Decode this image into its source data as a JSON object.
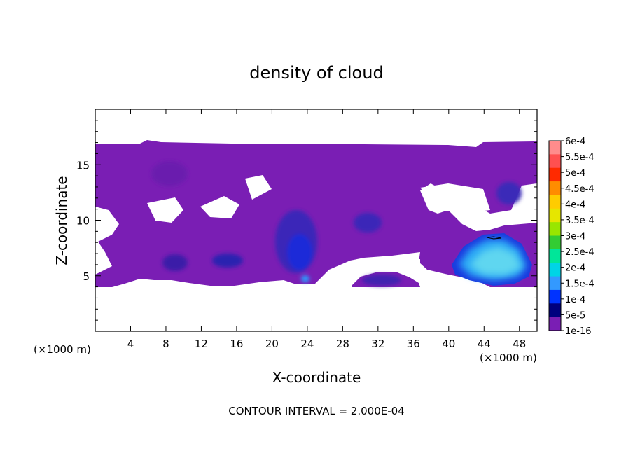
{
  "chart_data": {
    "type": "heatmap",
    "title": "density of cloud",
    "xlabel": "X-coordinate",
    "ylabel": "Z-coordinate",
    "x_unit": "(×1000 m)",
    "x_ticks": [
      4,
      8,
      12,
      16,
      20,
      24,
      28,
      32,
      36,
      40,
      44,
      48
    ],
    "y_ticks": [
      5,
      10,
      15
    ],
    "xlim": [
      0,
      50
    ],
    "ylim": [
      0,
      20
    ],
    "colorbar": {
      "labels": [
        "6e-4",
        "5.5e-4",
        "5e-4",
        "4.5e-4",
        "4e-4",
        "3.5e-4",
        "3e-4",
        "2.5e-4",
        "2e-4",
        "1.5e-4",
        "1e-4",
        "5e-5",
        "1e-16"
      ],
      "colors": [
        "#ff8c8c",
        "#ff5050",
        "#ff2a00",
        "#ff8c00",
        "#ffcc00",
        "#e6e600",
        "#99e600",
        "#33cc33",
        "#00e699",
        "#00d4e6",
        "#3399ff",
        "#0033ff",
        "#00007f",
        "#7a1eb4"
      ]
    },
    "cloud_regions": [
      {
        "name": "upper broad layer",
        "x": [
          0,
          50
        ],
        "z": [
          12.5,
          17
        ],
        "level": "1e-16"
      },
      {
        "name": "left low region",
        "x": [
          0,
          9
        ],
        "z": [
          4,
          8
        ],
        "level": "1e-16"
      },
      {
        "name": "core at x=9",
        "x": [
          8,
          11
        ],
        "z": [
          5,
          7
        ],
        "level": "5e-5"
      },
      {
        "name": "core at x=15",
        "x": [
          13,
          17
        ],
        "z": [
          5.5,
          7
        ],
        "level": "5e-5"
      },
      {
        "name": "central column",
        "x": [
          20,
          26
        ],
        "z": [
          4.5,
          12
        ],
        "level": "1e-4"
      },
      {
        "name": "core at x=24",
        "x": [
          23.5,
          24.5
        ],
        "z": [
          4.5,
          5
        ],
        "level": "1.5e-4"
      },
      {
        "name": "core at x=30",
        "x": [
          29,
          32
        ],
        "z": [
          8.5,
          11
        ],
        "level": "5e-5"
      },
      {
        "name": "lower patch x=32",
        "x": [
          29,
          36
        ],
        "z": [
          4,
          5.5
        ],
        "level": "5e-5"
      },
      {
        "name": "right cloud",
        "x": [
          40,
          49
        ],
        "z": [
          4,
          9
        ],
        "level": "2e-4"
      },
      {
        "name": "core at x=47",
        "x": [
          46,
          48
        ],
        "z": [
          10.5,
          13
        ],
        "level": "5e-5"
      }
    ],
    "note": "CONTOUR INTERVAL = 2.000E-04",
    "grid": false,
    "legend": "right"
  }
}
